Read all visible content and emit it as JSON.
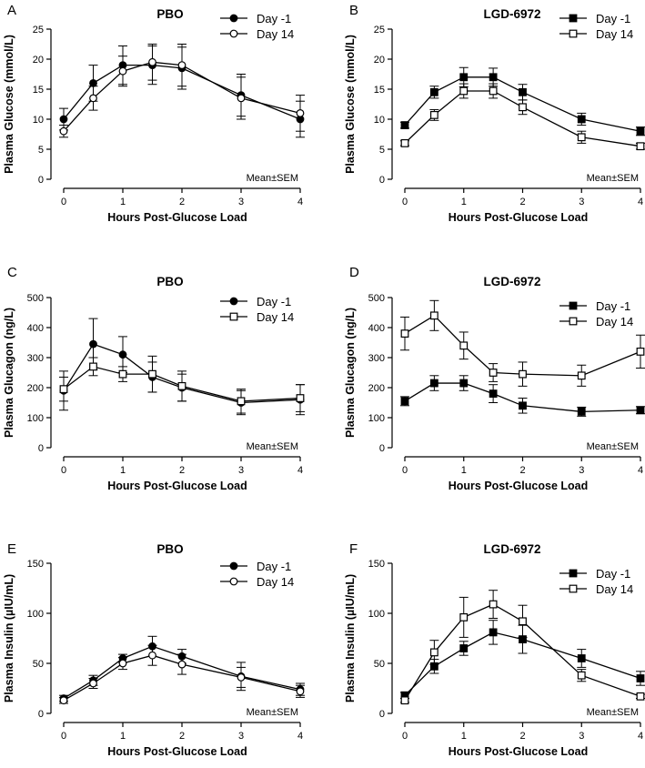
{
  "chart_data": [
    {
      "type": "line",
      "panel_letter": "A",
      "title": "PBO",
      "xlabel": "Hours Post-Glucose Load",
      "ylabel": "Plasma Glucose (mmol/L)",
      "ylim": [
        0,
        25
      ],
      "yticks": [
        0,
        5,
        10,
        15,
        20,
        25
      ],
      "xlim": [
        0,
        4
      ],
      "xticks": [
        0,
        1,
        2,
        3,
        4
      ],
      "x": [
        0,
        0.5,
        1,
        1.5,
        2,
        3,
        4
      ],
      "legend_position": "top-right",
      "note": "Mean±SEM",
      "series": [
        {
          "name": "Day -1",
          "marker": "filled-circle",
          "values": [
            10,
            16,
            19,
            19,
            18.5,
            14,
            10
          ],
          "errors": [
            1.8,
            3.0,
            3.2,
            3.2,
            3.5,
            3.5,
            3.0
          ]
        },
        {
          "name": "Day 14",
          "marker": "open-circle",
          "values": [
            8,
            13.5,
            18,
            19.5,
            19,
            13.5,
            11
          ],
          "errors": [
            1.0,
            2.0,
            2.5,
            3.0,
            3.5,
            3.5,
            3.0
          ]
        }
      ]
    },
    {
      "type": "line",
      "panel_letter": "B",
      "title": "LGD-6972",
      "xlabel": "Hours Post-Glucose Load",
      "ylabel": "Plasma Glucose (mmol/L)",
      "ylim": [
        0,
        25
      ],
      "yticks": [
        0,
        5,
        10,
        15,
        20,
        25
      ],
      "xlim": [
        0,
        4
      ],
      "xticks": [
        0,
        1,
        2,
        3,
        4
      ],
      "x": [
        0,
        0.5,
        1,
        1.5,
        2,
        3,
        4
      ],
      "legend_position": "top-right",
      "note": "Mean±SEM",
      "series": [
        {
          "name": "Day -1",
          "marker": "filled-square",
          "values": [
            9,
            14.5,
            17,
            17,
            14.5,
            10,
            8
          ],
          "errors": [
            0.5,
            1.0,
            1.6,
            1.5,
            1.3,
            1.0,
            0.7
          ]
        },
        {
          "name": "Day 14",
          "marker": "open-square",
          "values": [
            6,
            10.7,
            14.7,
            14.7,
            12,
            7,
            5.5
          ],
          "errors": [
            0.4,
            0.9,
            1.2,
            1.2,
            1.2,
            1.0,
            0.5
          ]
        }
      ]
    },
    {
      "type": "line",
      "panel_letter": "C",
      "title": "PBO",
      "xlabel": "Hours Post-Glucose Load",
      "ylabel": "Plasma Glucagon (ng/L)",
      "ylim": [
        0,
        500
      ],
      "yticks": [
        0,
        100,
        200,
        300,
        400,
        500
      ],
      "xlim": [
        0,
        4
      ],
      "xticks": [
        0,
        1,
        2,
        3,
        4
      ],
      "x": [
        0,
        0.5,
        1,
        1.5,
        2,
        3,
        4
      ],
      "legend_position": "top-right",
      "note": "Mean±SEM",
      "series": [
        {
          "name": "Day -1",
          "marker": "filled-circle",
          "values": [
            190,
            345,
            310,
            235,
            200,
            150,
            160
          ],
          "errors": [
            65,
            85,
            60,
            50,
            45,
            40,
            50
          ]
        },
        {
          "name": "Day 14",
          "marker": "open-square",
          "values": [
            195,
            270,
            245,
            245,
            205,
            155,
            165
          ],
          "errors": [
            40,
            30,
            25,
            60,
            50,
            40,
            45
          ]
        }
      ]
    },
    {
      "type": "line",
      "panel_letter": "D",
      "title": "LGD-6972",
      "xlabel": "Hours Post-Glucose Load",
      "ylabel": "Plasma Glucagon (ng/L)",
      "ylim": [
        0,
        500
      ],
      "yticks": [
        0,
        100,
        200,
        300,
        400,
        500
      ],
      "xlim": [
        0,
        4
      ],
      "xticks": [
        0,
        1,
        2,
        3,
        4
      ],
      "x": [
        0,
        0.5,
        1,
        1.5,
        2,
        3,
        4
      ],
      "legend_position": "top-right",
      "note": "Mean±SEM",
      "series": [
        {
          "name": "Day -1",
          "marker": "filled-square",
          "values": [
            155,
            215,
            215,
            180,
            140,
            120,
            125
          ],
          "errors": [
            15,
            25,
            25,
            30,
            25,
            15,
            12
          ]
        },
        {
          "name": "Day 14",
          "marker": "open-square",
          "values": [
            380,
            440,
            340,
            250,
            245,
            240,
            320
          ],
          "errors": [
            55,
            50,
            45,
            30,
            40,
            35,
            55
          ]
        }
      ]
    },
    {
      "type": "line",
      "panel_letter": "E",
      "title": "PBO",
      "xlabel": "Hours Post-Glucose Load",
      "ylabel": "Plasma Insulin (µIU/mL)",
      "ylim": [
        0,
        150
      ],
      "yticks": [
        0,
        50,
        100,
        150
      ],
      "xlim": [
        0,
        4
      ],
      "xticks": [
        0,
        1,
        2,
        3,
        4
      ],
      "x": [
        0,
        0.5,
        1,
        1.5,
        2,
        3,
        4
      ],
      "legend_position": "top-right",
      "note": "Mean±SEM",
      "series": [
        {
          "name": "Day -1",
          "marker": "filled-circle",
          "values": [
            15,
            33,
            55,
            67,
            57,
            37,
            24
          ],
          "errors": [
            3,
            5,
            4,
            10,
            7,
            14,
            6
          ]
        },
        {
          "name": "Day 14",
          "marker": "open-circle",
          "values": [
            13,
            30,
            50,
            58,
            49,
            36,
            22
          ],
          "errors": [
            3,
            5,
            6,
            10,
            10,
            10,
            6
          ]
        }
      ]
    },
    {
      "type": "line",
      "panel_letter": "F",
      "title": "LGD-6972",
      "xlabel": "Hours Post-Glucose Load",
      "ylabel": "Plasma Insulin (µIU/mL)",
      "ylim": [
        0,
        150
      ],
      "yticks": [
        0,
        50,
        100,
        150
      ],
      "xlim": [
        0,
        4
      ],
      "xticks": [
        0,
        1,
        2,
        3,
        4
      ],
      "x": [
        0,
        0.5,
        1,
        1.5,
        2,
        3,
        4
      ],
      "legend_position": "top-right",
      "note": "Mean±SEM",
      "series": [
        {
          "name": "Day -1",
          "marker": "filled-square",
          "values": [
            18,
            47,
            65,
            81,
            74,
            55,
            35
          ],
          "errors": [
            3,
            7,
            7,
            12,
            14,
            9,
            7
          ]
        },
        {
          "name": "Day 14",
          "marker": "open-square",
          "values": [
            13,
            61,
            96,
            109,
            92,
            38,
            17
          ],
          "errors": [
            2,
            12,
            20,
            14,
            16,
            6,
            2
          ]
        }
      ]
    }
  ]
}
